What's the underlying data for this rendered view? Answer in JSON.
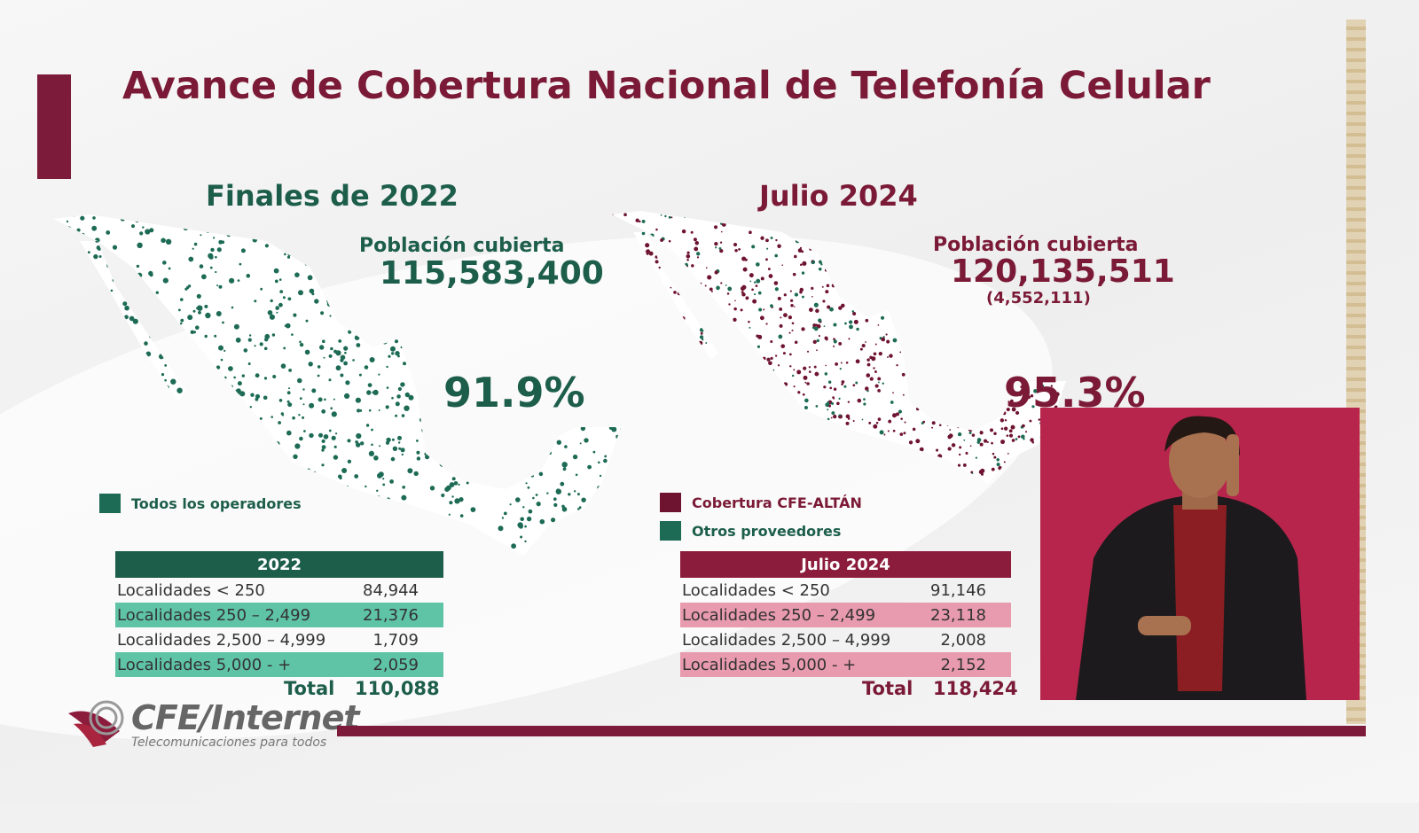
{
  "title": "Avance de Cobertura Nacional de Telefonía Celular",
  "left": {
    "heading": "Finales de 2022",
    "population_label": "Población cubierta",
    "population_value": "115,583,400",
    "percent": "91.9%",
    "legend": [
      {
        "label": "Todos los operadores",
        "color": "#1d6b55"
      }
    ],
    "table": {
      "header": "2022",
      "rows": [
        {
          "label": "Localidades < 250",
          "value": "84,944"
        },
        {
          "label": "Localidades 250 – 2,499",
          "value": "21,376"
        },
        {
          "label": "Localidades 2,500 – 4,999",
          "value": "1,709"
        },
        {
          "label": "Localidades 5,000 - +",
          "value": "2,059"
        }
      ],
      "total_label": "Total",
      "total_value": "110,088"
    }
  },
  "right": {
    "heading": "Julio 2024",
    "population_label": "Población cubierta",
    "population_value": "120,135,511",
    "population_delta": "(4,552,111)",
    "percent": "95.3%",
    "legend": [
      {
        "label": "Cobertura CFE-ALTÁN",
        "color": "#6e1430"
      },
      {
        "label": "Otros proveedores",
        "color": "#1d6b55"
      }
    ],
    "table": {
      "header": "Julio 2024",
      "rows": [
        {
          "label": "Localidades < 250",
          "value": "91,146"
        },
        {
          "label": "Localidades 250 – 2,499",
          "value": "23,118"
        },
        {
          "label": "Localidades 2,500 – 4,999",
          "value": "2,008"
        },
        {
          "label": "Localidades 5,000 - +",
          "value": "2,152"
        }
      ],
      "total_label": "Total",
      "total_value": "118,424"
    }
  },
  "logo": {
    "name": "CFE/Internet",
    "tagline": "Telecomunicaciones para todos"
  },
  "colors": {
    "maroon": "#7b1a37",
    "green": "#1d5e4b",
    "green_row": "#5fc4a6",
    "pink_row": "#e89aae"
  }
}
